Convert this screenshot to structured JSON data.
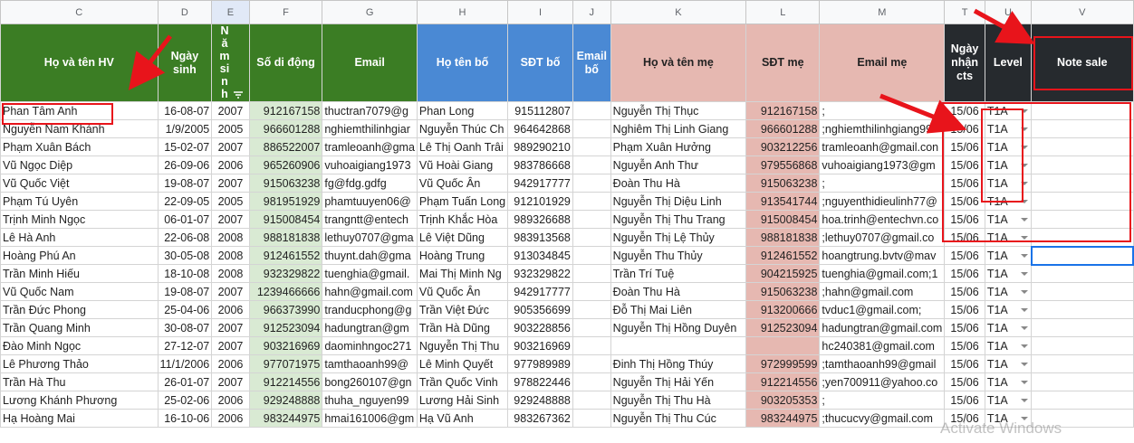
{
  "column_letters": [
    "C",
    "D",
    "E",
    "F",
    "G",
    "H",
    "I",
    "J",
    "K",
    "L",
    "M",
    "T",
    "U",
    "V"
  ],
  "headers": [
    "Họ và tên HV",
    "Ngày sinh",
    "Năm sinh",
    "Số di động",
    "Email",
    "Họ tên bố",
    "SĐT bố",
    "Email bố",
    "Họ và tên mẹ",
    "SĐT mẹ",
    "Email mẹ",
    "Ngày nhận cts",
    "Level",
    "Note sale"
  ],
  "rows": [
    [
      "Phan Tâm Anh",
      "16-08-07",
      "2007",
      "912167158",
      "thuctran7079@g",
      "Phan Long",
      "915112807",
      "",
      "Nguyễn Thị Thục",
      "912167158",
      ";",
      "15/06",
      "T1A",
      ""
    ],
    [
      "Nguyễn Nam Khánh",
      "1/9/2005",
      "2005",
      "966601288",
      "nghiemthilinhgiar",
      "Nguyễn Thúc Ch",
      "964642868",
      "",
      "Nghiêm Thị Linh Giang",
      "966601288",
      ";nghiemthilinhgiang99",
      "15/06",
      "T1A",
      ""
    ],
    [
      "Phạm Xuân Bách",
      "15-02-07",
      "2007",
      "886522007",
      "tramleoanh@gma",
      "Lê Thị Oanh Trâi",
      "989290210",
      "",
      "Phạm Xuân Hưởng",
      "903212256",
      "tramleoanh@gmail.con",
      "15/06",
      "T1A",
      ""
    ],
    [
      "Vũ Ngọc Diệp",
      "26-09-06",
      "2006",
      "965260906",
      "vuhoaigiang1973",
      "Vũ Hoài Giang",
      "983786668",
      "",
      "Nguyễn Anh Thư",
      "979556868",
      "vuhoaigiang1973@gm",
      "15/06",
      "T1A",
      ""
    ],
    [
      "Vũ Quốc Việt",
      "19-08-07",
      "2007",
      "915063238",
      "fg@fdg.gdfg",
      "Vũ Quốc Ân",
      "942917777",
      "",
      "Đoàn Thu Hà",
      "915063238",
      ";",
      "15/06",
      "T1A",
      ""
    ],
    [
      "Phạm Tú Uyên",
      "22-09-05",
      "2005",
      "981951929",
      "phamtuuyen06@",
      "Phạm Tuấn Long",
      "912101929",
      "",
      "Nguyễn Thị Diệu Linh",
      "913541744",
      ";nguyenthidieulinh77@",
      "15/06",
      "T1A",
      ""
    ],
    [
      "Trịnh Minh Ngọc",
      "06-01-07",
      "2007",
      "915008454",
      "trangntt@entech",
      "Trịnh Khắc Hòa",
      "989326688",
      "",
      "Nguyễn Thị Thu Trang",
      "915008454",
      "hoa.trinh@entechvn.co",
      "15/06",
      "T1A",
      ""
    ],
    [
      "Lê Hà Anh",
      "22-06-08",
      "2008",
      "988181838",
      "lethuy0707@gma",
      "Lê Việt Dũng",
      "983913568",
      "",
      "Nguyễn Thị Lệ Thủy",
      "988181838",
      ";lethuy0707@gmail.co",
      "15/06",
      "T1A",
      ""
    ],
    [
      "Hoàng Phú An",
      "30-05-08",
      "2008",
      "912461552",
      "thuynt.dah@gma",
      "Hoàng Trung",
      "913034845",
      "",
      "Nguyễn Thu Thủy",
      "912461552",
      "hoangtrung.bvtv@mav",
      "15/06",
      "T1A",
      ""
    ],
    [
      "Trần Minh Hiếu",
      "18-10-08",
      "2008",
      "932329822",
      "tuenghia@gmail.",
      "Mai Thị Minh Ng",
      "932329822",
      "",
      "Trần Trí Tuệ",
      "904215925",
      "tuenghia@gmail.com;1",
      "15/06",
      "T1A",
      ""
    ],
    [
      "Vũ Quốc Nam",
      "19-08-07",
      "2007",
      "1239466666",
      "hahn@gmail.com",
      "Vũ Quốc Ân",
      "942917777",
      "",
      "Đoàn Thu Hà",
      "915063238",
      ";hahn@gmail.com",
      "15/06",
      "T1A",
      ""
    ],
    [
      "Trần Đức Phong",
      "25-04-06",
      "2006",
      "966373990",
      "tranducphong@g",
      "Trần Việt Đức",
      "905356699",
      "",
      "Đỗ Thị Mai Liên",
      "913200666",
      "tvduc1@gmail.com;",
      "15/06",
      "T1A",
      ""
    ],
    [
      "Trần Quang Minh",
      "30-08-07",
      "2007",
      "912523094",
      "hadungtran@gm",
      "Trần Hà Dũng",
      "903228856",
      "",
      "Nguyễn Thị Hồng Duyên",
      "912523094",
      "hadungtran@gmail.com",
      "15/06",
      "T1A",
      ""
    ],
    [
      "Đào Minh Ngọc",
      "27-12-07",
      "2007",
      "903216969",
      "daominhngoc271",
      "Nguyễn Thị Thu",
      "903216969",
      "",
      "",
      "",
      "hc240381@gmail.com",
      "15/06",
      "T1A",
      ""
    ],
    [
      "Lê Phương Thảo",
      "11/1/2006",
      "2006",
      "977071975",
      "tamthaoanh99@",
      "Lê Minh Quyết",
      "977989989",
      "",
      "Đinh Thị Hồng Thúy",
      "972999599",
      ";tamthaoanh99@gmail",
      "15/06",
      "T1A",
      ""
    ],
    [
      "Trần Hà Thu",
      "26-01-07",
      "2007",
      "912214556",
      "bong260107@gn",
      "Trần Quốc Vinh",
      "978822446",
      "",
      "Nguyễn Thị Hải Yến",
      "912214556",
      ";yen700911@yahoo.co",
      "15/06",
      "T1A",
      ""
    ],
    [
      "Lương Khánh Phương",
      "25-02-06",
      "2006",
      "929248888",
      "thuha_nguyen99",
      "Lương Hải Sinh",
      "929248888",
      "",
      "Nguyễn Thị Thu Hà",
      "903205353",
      ";",
      "15/06",
      "T1A",
      ""
    ],
    [
      "Hạ Hoàng Mai",
      "16-10-06",
      "2006",
      "983244975",
      "hmai161006@gm",
      "Hạ Vũ Anh",
      "983267362",
      "",
      "Nguyễn Thị Thu Cúc",
      "983244975",
      ";thucucvy@gmail.com",
      "15/06",
      "T1A",
      ""
    ]
  ],
  "watermark": "Activate Windows",
  "colors": {
    "green_header": "#3b7d24",
    "blue_header": "#4a89d4",
    "pink_header": "#e6b8b1",
    "dark_header": "#262a2e",
    "annotation_red": "#e8141b"
  }
}
